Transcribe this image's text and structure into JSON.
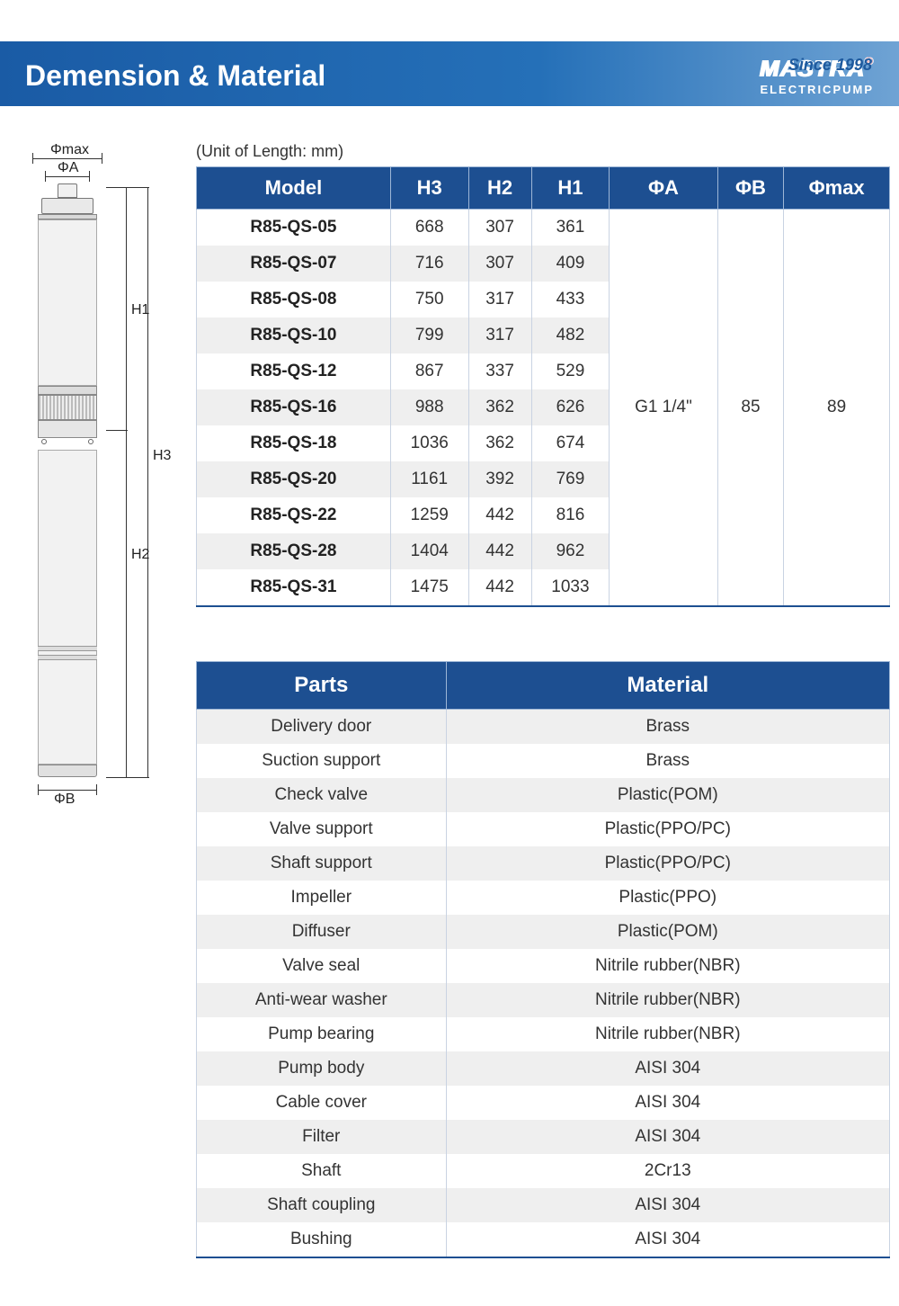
{
  "top_bar": {
    "since": "Since 1998"
  },
  "header": {
    "title": "Demension & Material",
    "brand_name": "MASTRA",
    "brand_reg": "®",
    "brand_sub": "ELECTRICPUMP"
  },
  "unit_label": "(Unit of Length: mm)",
  "diagram_labels": {
    "phi_max": "Φmax",
    "phi_a": "ΦA",
    "phi_b": "ΦB",
    "h1": "H1",
    "h2": "H2",
    "h3": "H3"
  },
  "spec_table": {
    "columns": [
      "Model",
      "H3",
      "H2",
      "H1",
      "ΦA",
      "ΦB",
      "Φmax"
    ],
    "rows": [
      [
        "R85-QS-05",
        "668",
        "307",
        "361"
      ],
      [
        "R85-QS-07",
        "716",
        "307",
        "409"
      ],
      [
        "R85-QS-08",
        "750",
        "317",
        "433"
      ],
      [
        "R85-QS-10",
        "799",
        "317",
        "482"
      ],
      [
        "R85-QS-12",
        "867",
        "337",
        "529"
      ],
      [
        "R85-QS-16",
        "988",
        "362",
        "626"
      ],
      [
        "R85-QS-18",
        "1036",
        "362",
        "674"
      ],
      [
        "R85-QS-20",
        "1161",
        "392",
        "769"
      ],
      [
        "R85-QS-22",
        "1259",
        "442",
        "816"
      ],
      [
        "R85-QS-28",
        "1404",
        "442",
        "962"
      ],
      [
        "R85-QS-31",
        "1475",
        "442",
        "1033"
      ]
    ],
    "merged": {
      "phi_a": "G1 1/4\"",
      "phi_b": "85",
      "phi_max": "89"
    }
  },
  "material_table": {
    "columns": [
      "Parts",
      "Material"
    ],
    "rows": [
      [
        "Delivery door",
        "Brass"
      ],
      [
        "Suction support",
        "Brass"
      ],
      [
        "Check valve",
        "Plastic(POM)"
      ],
      [
        "Valve support",
        "Plastic(PPO/PC)"
      ],
      [
        "Shaft support",
        "Plastic(PPO/PC)"
      ],
      [
        "Impeller",
        "Plastic(PPO)"
      ],
      [
        "Diffuser",
        "Plastic(POM)"
      ],
      [
        "Valve seal",
        "Nitrile rubber(NBR)"
      ],
      [
        "Anti-wear washer",
        "Nitrile rubber(NBR)"
      ],
      [
        "Pump bearing",
        "Nitrile rubber(NBR)"
      ],
      [
        "Pump body",
        "AISI 304"
      ],
      [
        "Cable cover",
        "AISI 304"
      ],
      [
        "Filter",
        "AISI 304"
      ],
      [
        "Shaft",
        "2Cr13"
      ],
      [
        "Shaft coupling",
        "AISI 304"
      ],
      [
        "Bushing",
        "AISI 304"
      ]
    ]
  },
  "colors": {
    "header_bg_left": "#1a5ba5",
    "header_bg_right": "#6fa3d4",
    "table_header_bg": "#1d4f91",
    "row_alt_bg": "#efefef",
    "border": "#c9d3e2"
  }
}
